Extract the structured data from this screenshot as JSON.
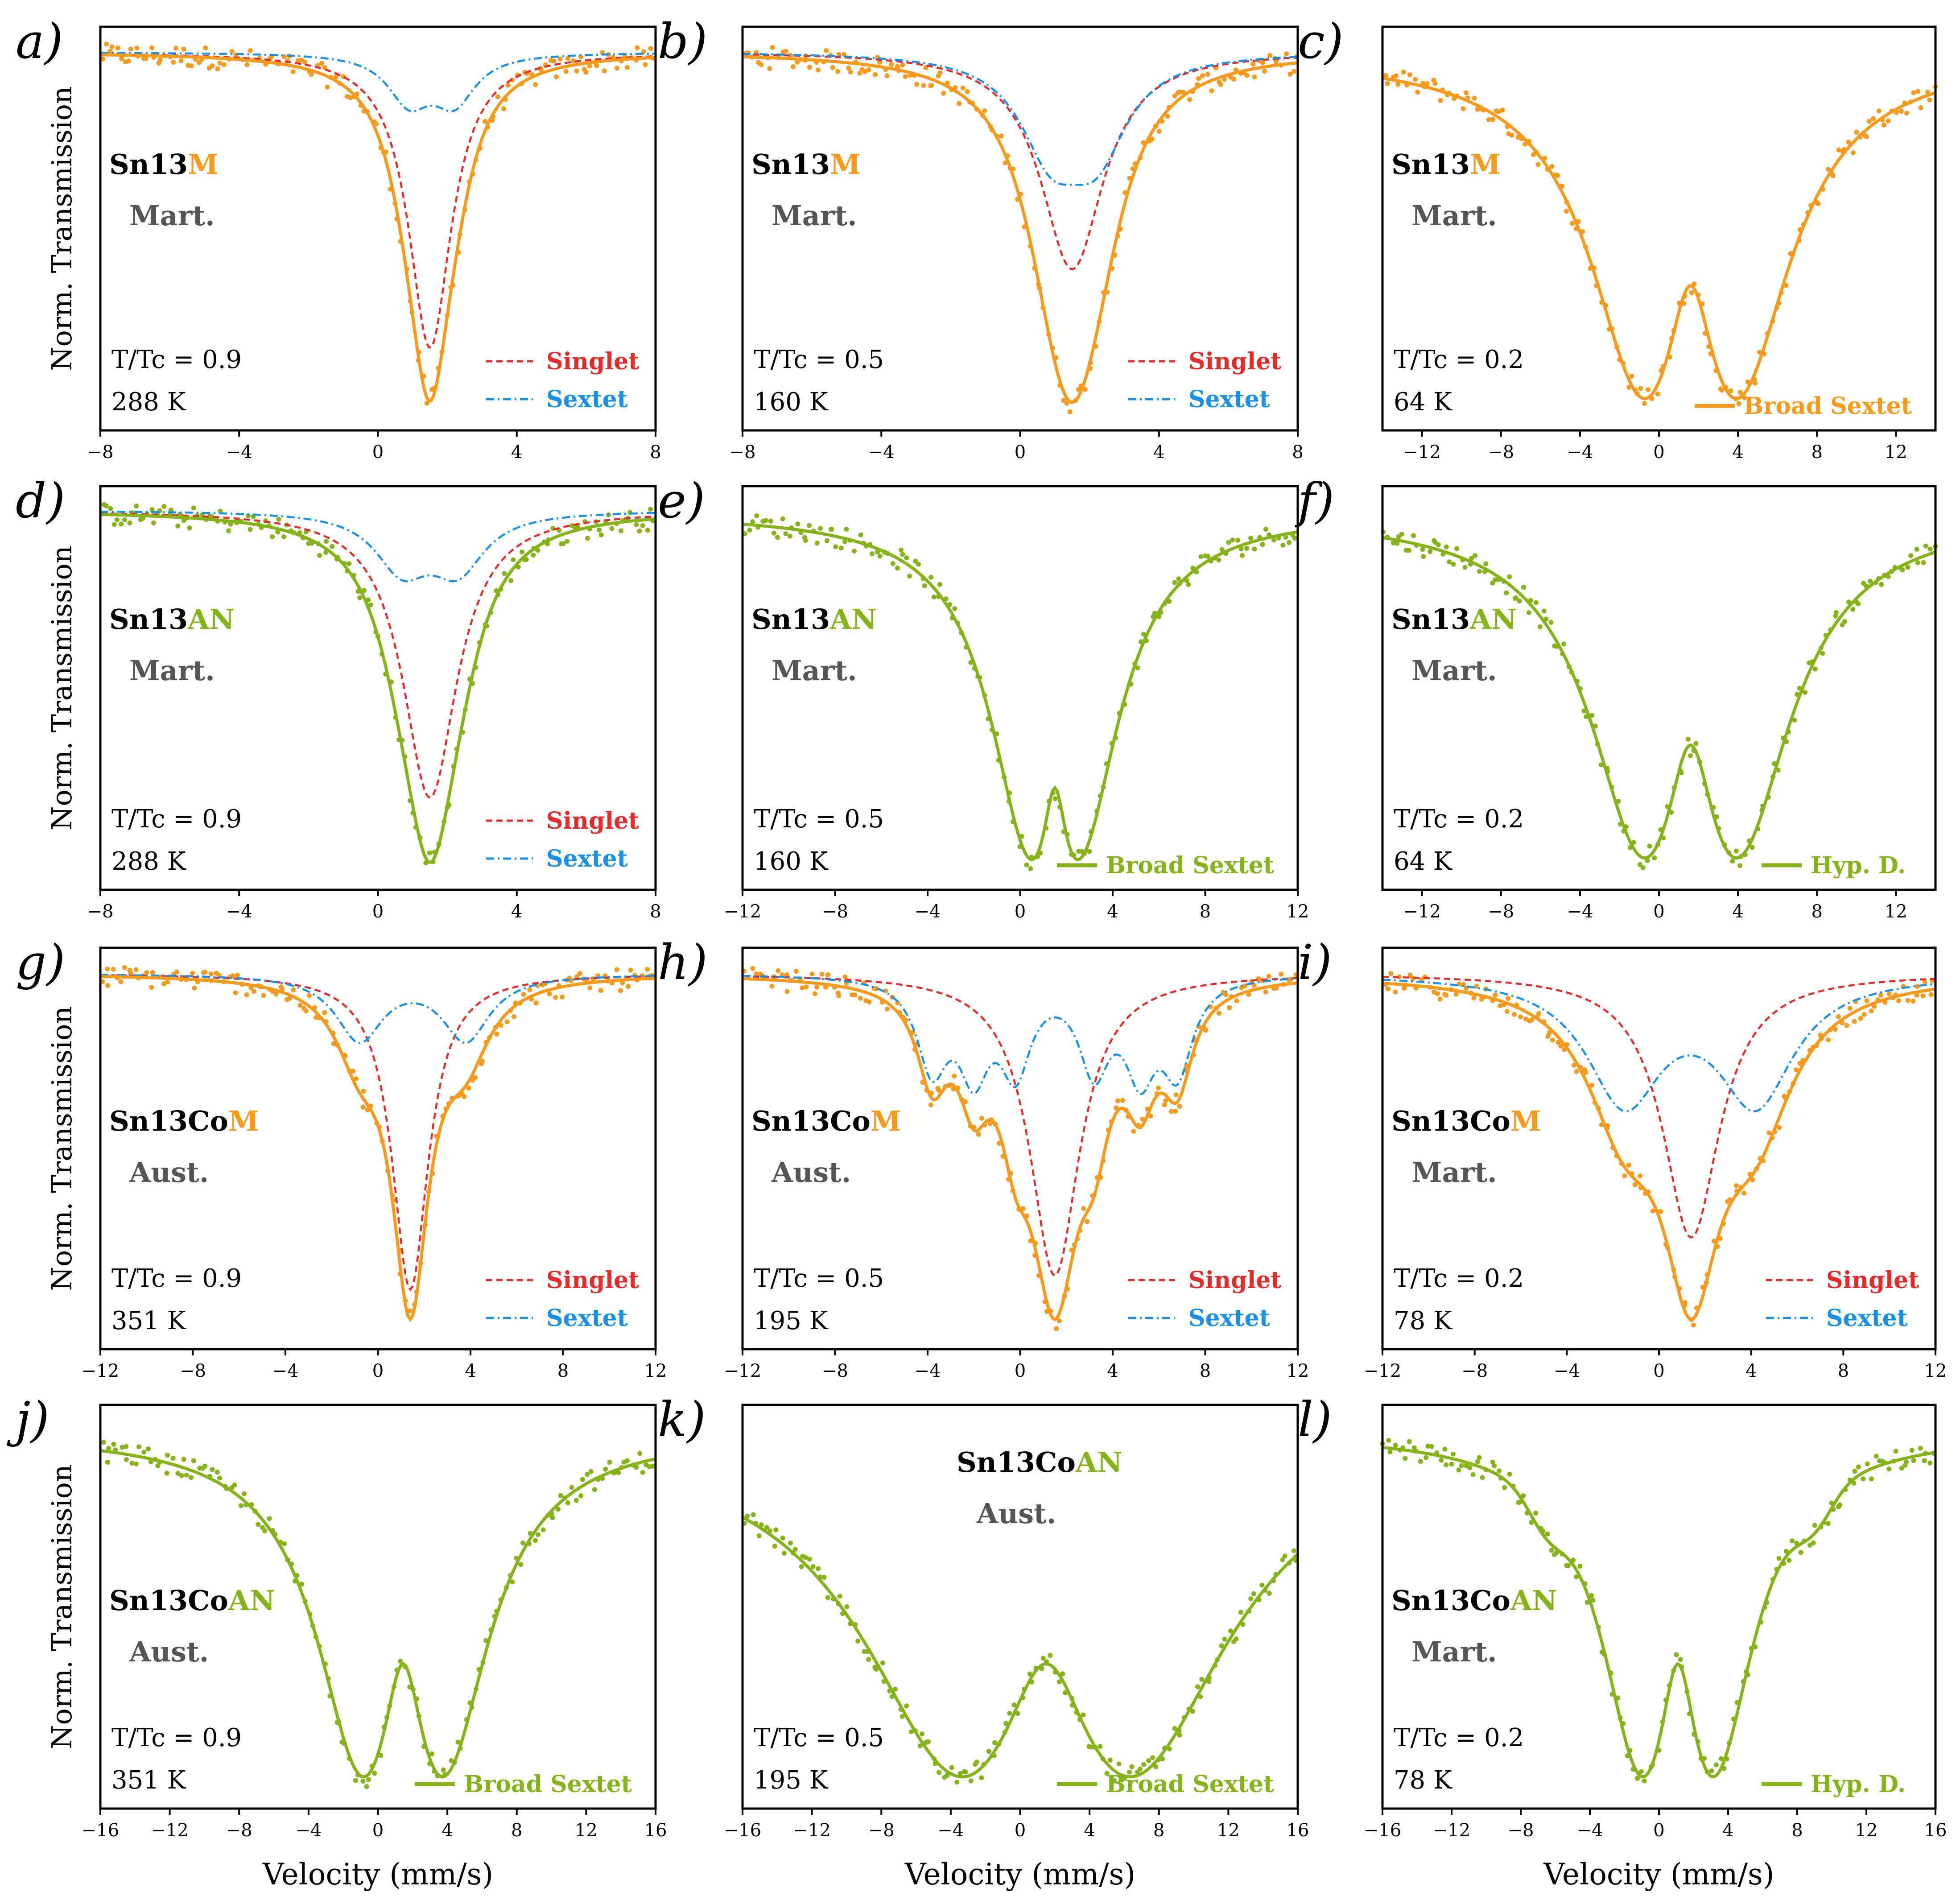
{
  "figure": {
    "ylabel": "Norm.  Transmission",
    "xlabel": "Velocity (mm/s)"
  },
  "colors": {
    "orange": "#f39a1f",
    "green": "#86b21b",
    "singlet": "#e22b2b",
    "sextet": "#1a8fe6",
    "phase": "#555555"
  },
  "chart_data": [
    {
      "panel": "a)",
      "type": "line",
      "sample": "Sn13M",
      "sample_base": "Sn13",
      "sample_accent": "M",
      "phase": "Mart.",
      "ratio": "T/Tc = 0.9",
      "temperature": "288 K",
      "xlim": [
        -8,
        8
      ],
      "xticks": [
        "−8",
        "−4",
        "0",
        "4",
        "8"
      ],
      "series": [
        {
          "name": "Experimental data",
          "style": "points"
        },
        {
          "name": "Fit",
          "style": "solid"
        },
        {
          "name": "Singlet",
          "style": "dashed",
          "center": 1.5,
          "width": 1.5,
          "depth": 0.76
        },
        {
          "name": "Sextet",
          "style": "dashdot",
          "centers": [
            0.9,
            2.2
          ],
          "width": 1.5,
          "depth": 0.12
        }
      ],
      "legend": [
        "Singlet",
        "Sextet"
      ]
    },
    {
      "panel": "b)",
      "type": "line",
      "sample": "Sn13M",
      "sample_base": "Sn13",
      "sample_accent": "M",
      "phase": "Mart.",
      "ratio": "T/Tc = 0.5",
      "temperature": "160 K",
      "xlim": [
        -8,
        8
      ],
      "xticks": [
        "−8",
        "−4",
        "0",
        "4",
        "8"
      ],
      "series": [
        {
          "name": "Experimental data",
          "style": "points"
        },
        {
          "name": "Fit",
          "style": "solid"
        },
        {
          "name": "Singlet",
          "style": "dashed",
          "center": 1.5,
          "width": 2.2,
          "depth": 0.63
        },
        {
          "name": "Sextet",
          "style": "dashdot",
          "centers": [
            0.9,
            2.2
          ],
          "width": 2.2,
          "depth": 0.26
        }
      ],
      "legend": [
        "Singlet",
        "Sextet"
      ]
    },
    {
      "panel": "c)",
      "type": "line",
      "sample": "Sn13M",
      "sample_base": "Sn13",
      "sample_accent": "M",
      "phase": "Mart.",
      "ratio": "T/Tc = 0.2",
      "temperature": "64 K",
      "xlim": [
        -14,
        14
      ],
      "xticks": [
        "−12",
        "−8",
        "−4",
        "0",
        "4",
        "8",
        "12"
      ],
      "series": [
        {
          "name": "Experimental data",
          "style": "points"
        },
        {
          "name": "Broad Sextet",
          "style": "solid",
          "minima": [
            -0.8,
            4.0
          ],
          "local_max": 1.6
        }
      ],
      "legend": [
        "Broad Sextet"
      ]
    },
    {
      "panel": "d)",
      "type": "line",
      "sample": "Sn13AN",
      "sample_base": "Sn13",
      "sample_accent": "AN",
      "phase": "Mart.",
      "ratio": "T/Tc = 0.9",
      "temperature": "288 K",
      "xlim": [
        -8,
        8
      ],
      "xticks": [
        "−8",
        "−4",
        "0",
        "4",
        "8"
      ],
      "series": [
        {
          "name": "Experimental data",
          "style": "points"
        },
        {
          "name": "Fit",
          "style": "solid"
        },
        {
          "name": "Singlet",
          "style": "dashed",
          "center": 1.5,
          "width": 1.9,
          "depth": 0.88
        },
        {
          "name": "Sextet",
          "style": "dashdot",
          "centers": [
            0.7,
            2.3
          ],
          "width": 1.9,
          "depth": 0.17
        }
      ],
      "legend": [
        "Singlet",
        "Sextet"
      ]
    },
    {
      "panel": "e)",
      "type": "line",
      "sample": "Sn13AN",
      "sample_base": "Sn13",
      "sample_accent": "AN",
      "phase": "Mart.",
      "ratio": "T/Tc = 0.5",
      "temperature": "160 K",
      "xlim": [
        -12,
        12
      ],
      "xticks": [
        "−12",
        "−8",
        "−4",
        "0",
        "4",
        "8",
        "12"
      ],
      "series": [
        {
          "name": "Experimental data",
          "style": "points"
        },
        {
          "name": "Broad Sextet",
          "style": "solid",
          "minima": [
            0.4,
            2.6
          ],
          "local_max": 1.5
        }
      ],
      "legend": [
        "Broad Sextet"
      ]
    },
    {
      "panel": "f)",
      "type": "line",
      "sample": "Sn13AN",
      "sample_base": "Sn13",
      "sample_accent": "AN",
      "phase": "Mart.",
      "ratio": "T/Tc = 0.2",
      "temperature": "64 K",
      "xlim": [
        -14,
        14
      ],
      "xticks": [
        "−12",
        "−8",
        "−4",
        "0",
        "4",
        "8",
        "12"
      ],
      "series": [
        {
          "name": "Experimental data",
          "style": "points"
        },
        {
          "name": "Hyp. D.",
          "style": "solid",
          "minima": [
            -0.8,
            4.0
          ],
          "local_max": 1.6
        }
      ],
      "legend": [
        "Hyp. D."
      ]
    },
    {
      "panel": "g)",
      "type": "line",
      "sample": "Sn13CoM",
      "sample_base": "Sn13Co",
      "sample_accent": "M",
      "phase": "Aust.",
      "ratio": "T/Tc = 0.9",
      "temperature": "351 K",
      "xlim": [
        -12,
        12
      ],
      "xticks": [
        "−12",
        "−8",
        "−4",
        "0",
        "4",
        "8",
        "12"
      ],
      "series": [
        {
          "name": "Experimental data",
          "style": "points"
        },
        {
          "name": "Fit",
          "style": "solid"
        },
        {
          "name": "Singlet",
          "style": "dashed",
          "center": 1.4,
          "width": 1.9,
          "depth": 0.78
        },
        {
          "name": "Sextet",
          "style": "dashdot",
          "centers": [
            -0.8,
            3.8
          ],
          "width": 2.5,
          "depth": 0.16
        }
      ],
      "legend": [
        "Singlet",
        "Sextet"
      ]
    },
    {
      "panel": "h)",
      "type": "line",
      "sample": "Sn13CoM",
      "sample_base": "Sn13Co",
      "sample_accent": "M",
      "phase": "Aust.",
      "ratio": "T/Tc = 0.5",
      "temperature": "195 K",
      "xlim": [
        -12,
        12
      ],
      "xticks": [
        "−12",
        "−8",
        "−4",
        "0",
        "4",
        "8",
        "12"
      ],
      "series": [
        {
          "name": "Experimental data",
          "style": "points"
        },
        {
          "name": "Fit",
          "style": "solid"
        },
        {
          "name": "Singlet",
          "style": "dashed",
          "center": 1.5,
          "width": 2.6,
          "depth": 0.76
        },
        {
          "name": "Sextet",
          "style": "dashdot",
          "centers": [
            -3.8,
            -2.0,
            -0.2,
            3.2,
            5.2,
            6.8
          ],
          "width": 1.6,
          "depth": 0.22
        }
      ],
      "legend": [
        "Singlet",
        "Sextet"
      ]
    },
    {
      "panel": "i)",
      "type": "line",
      "sample": "Sn13CoM",
      "sample_base": "Sn13Co",
      "sample_accent": "M",
      "phase": "Mart.",
      "ratio": "T/Tc = 0.2",
      "temperature": "78 K",
      "xlim": [
        -12,
        12
      ],
      "xticks": [
        "−12",
        "−8",
        "−4",
        "0",
        "4",
        "8",
        "12"
      ],
      "series": [
        {
          "name": "Experimental data",
          "style": "points"
        },
        {
          "name": "Fit",
          "style": "solid"
        },
        {
          "name": "Singlet",
          "style": "dashed",
          "center": 1.4,
          "width": 3.0,
          "depth": 0.66
        },
        {
          "name": "Sextet",
          "style": "dashdot",
          "centers": [
            -1.5,
            4.2
          ],
          "width": 4.0,
          "depth": 0.31
        }
      ],
      "legend": [
        "Singlet",
        "Sextet"
      ]
    },
    {
      "panel": "j)",
      "type": "line",
      "sample": "Sn13CoAN",
      "sample_base": "Sn13Co",
      "sample_accent": "AN",
      "phase": "Aust.",
      "ratio": "T/Tc = 0.9",
      "temperature": "351 K",
      "xlim": [
        -16,
        16
      ],
      "xticks": [
        "−16",
        "−12",
        "−8",
        "−4",
        "0",
        "4",
        "8",
        "12",
        "16"
      ],
      "series": [
        {
          "name": "Experimental data",
          "style": "points"
        },
        {
          "name": "Broad Sextet",
          "style": "solid",
          "minima": [
            -0.9,
            3.8
          ],
          "local_max": 1.5
        }
      ],
      "legend": [
        "Broad Sextet"
      ]
    },
    {
      "panel": "k)",
      "type": "line",
      "sample": "Sn13CoAN",
      "sample_base": "Sn13Co",
      "sample_accent": "AN",
      "phase": "Aust.",
      "ratio": "T/Tc = 0.5",
      "temperature": "195 K",
      "xlim": [
        -16,
        16
      ],
      "xticks": [
        "−16",
        "−12",
        "−8",
        "−4",
        "0",
        "4",
        "8",
        "12",
        "16"
      ],
      "series": [
        {
          "name": "Experimental data",
          "style": "points"
        },
        {
          "name": "Broad Sextet",
          "style": "solid",
          "minima": [
            -3.5,
            6.5
          ],
          "local_max": 1.5
        }
      ],
      "legend": [
        "Broad Sextet"
      ]
    },
    {
      "panel": "l)",
      "type": "line",
      "sample": "Sn13CoAN",
      "sample_base": "Sn13Co",
      "sample_accent": "AN",
      "phase": "Mart.",
      "ratio": "T/Tc = 0.2",
      "temperature": "78 K",
      "xlim": [
        -16,
        16
      ],
      "xticks": [
        "−16",
        "−12",
        "−8",
        "−4",
        "0",
        "4",
        "8",
        "12",
        "16"
      ],
      "series": [
        {
          "name": "Experimental data",
          "style": "points"
        },
        {
          "name": "Hyp. D.",
          "style": "solid",
          "minima": [
            -1.0,
            3.2
          ],
          "local_max": 1.3
        }
      ],
      "legend": [
        "Hyp. D."
      ]
    }
  ]
}
